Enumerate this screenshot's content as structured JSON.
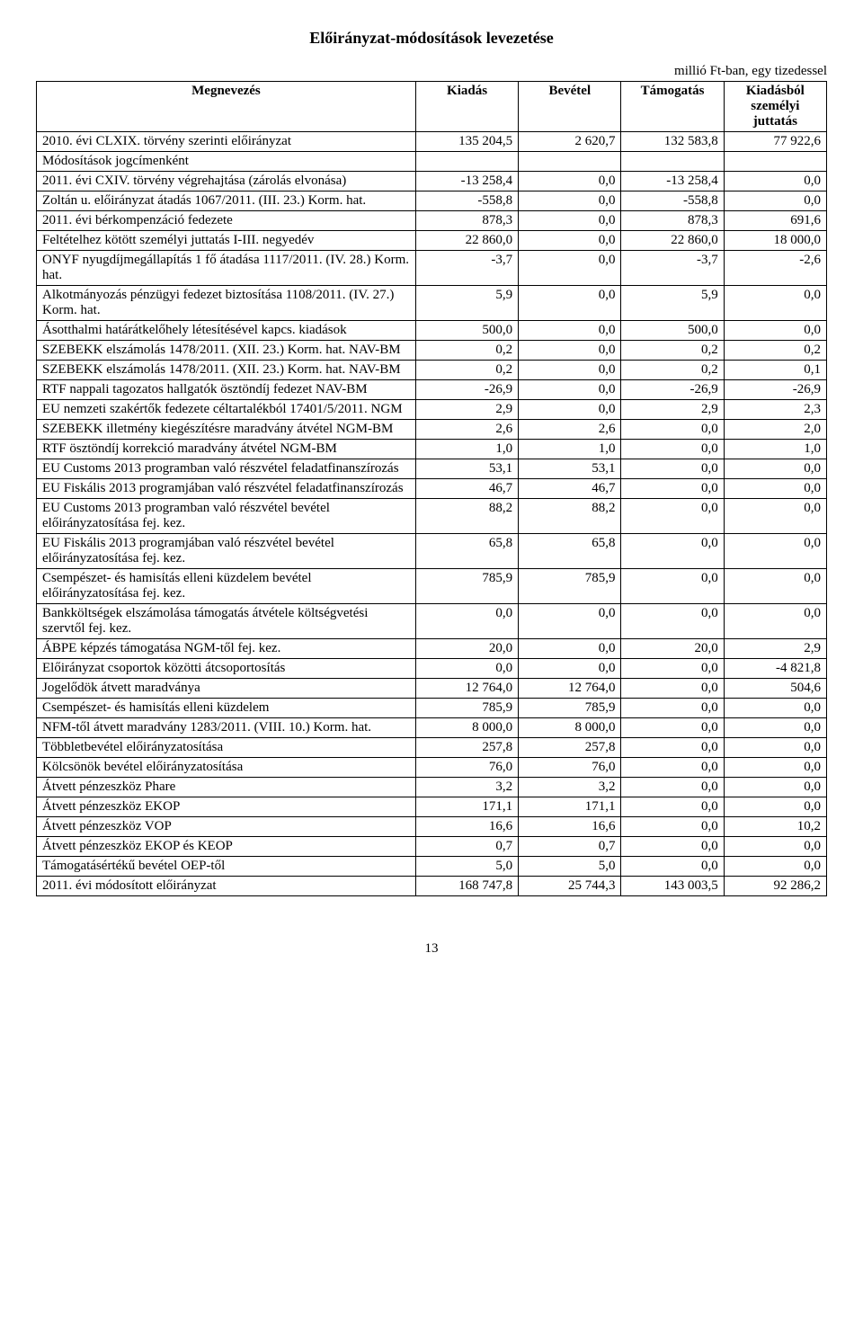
{
  "title": "Előirányzat-módosítások levezetése",
  "unit_note": "millió Ft-ban, egy tizedessel",
  "columns": {
    "name": "Megnevezés",
    "kiadas": "Kiadás",
    "bevetel": "Bevétel",
    "tamogatas": "Támogatás",
    "juttatas": "Kiadásból személyi juttatás"
  },
  "rows": [
    {
      "label": "2010. évi CLXIX. törvény szerinti előirányzat",
      "c": [
        "135 204,5",
        "2 620,7",
        "132 583,8",
        "77 922,6"
      ]
    },
    {
      "label": "Módosítások jogcímenként",
      "section": true
    },
    {
      "label": "2011. évi CXIV. törvény végrehajtása (zárolás elvonása)",
      "c": [
        "-13 258,4",
        "0,0",
        "-13 258,4",
        "0,0"
      ]
    },
    {
      "label": "Zoltán u. előirányzat átadás 1067/2011. (III. 23.) Korm. hat.",
      "c": [
        "-558,8",
        "0,0",
        "-558,8",
        "0,0"
      ]
    },
    {
      "label": "2011. évi bérkompenzáció fedezete",
      "c": [
        "878,3",
        "0,0",
        "878,3",
        "691,6"
      ]
    },
    {
      "label": "Feltételhez kötött személyi juttatás I-III. negyedév",
      "c": [
        "22 860,0",
        "0,0",
        "22 860,0",
        "18 000,0"
      ]
    },
    {
      "label": "ONYF nyugdíjmegállapítás 1 fő átadása 1117/2011. (IV. 28.) Korm. hat.",
      "c": [
        "-3,7",
        "0,0",
        "-3,7",
        "-2,6"
      ]
    },
    {
      "label": "Alkotmányozás pénzügyi fedezet biztosítása 1108/2011. (IV. 27.) Korm. hat.",
      "c": [
        "5,9",
        "0,0",
        "5,9",
        "0,0"
      ]
    },
    {
      "label": "Ásotthalmi határátkelőhely létesítésével kapcs. kiadások",
      "c": [
        "500,0",
        "0,0",
        "500,0",
        "0,0"
      ]
    },
    {
      "label": "SZEBEKK elszámolás  1478/2011. (XII. 23.) Korm. hat. NAV-BM",
      "c": [
        "0,2",
        "0,0",
        "0,2",
        "0,2"
      ]
    },
    {
      "label": "SZEBEKK elszámolás  1478/2011. (XII. 23.) Korm. hat. NAV-BM",
      "c": [
        "0,2",
        "0,0",
        "0,2",
        "0,1"
      ]
    },
    {
      "label": "RTF nappali tagozatos hallgatók ösztöndíj fedezet NAV-BM",
      "c": [
        "-26,9",
        "0,0",
        "-26,9",
        "-26,9"
      ]
    },
    {
      "label": "EU nemzeti szakértők fedezete céltartalékból  17401/5/2011. NGM",
      "c": [
        "2,9",
        "0,0",
        "2,9",
        "2,3"
      ]
    },
    {
      "label": "SZEBEKK illetmény kiegészítésre maradvány átvétel NGM-BM",
      "c": [
        "2,6",
        "2,6",
        "0,0",
        "2,0"
      ]
    },
    {
      "label": "RTF ösztöndíj korrekció maradvány átvétel NGM-BM",
      "c": [
        "1,0",
        "1,0",
        "0,0",
        "1,0"
      ]
    },
    {
      "label": "EU Customs 2013 programban való részvétel feladatfinanszírozás",
      "c": [
        "53,1",
        "53,1",
        "0,0",
        "0,0"
      ]
    },
    {
      "label": "EU Fiskális 2013 programjában való részvétel feladatfinanszírozás",
      "c": [
        "46,7",
        "46,7",
        "0,0",
        "0,0"
      ]
    },
    {
      "label": "EU Customs 2013 programban való részvétel bevétel előirányzatosítása fej. kez.",
      "c": [
        "88,2",
        "88,2",
        "0,0",
        "0,0"
      ]
    },
    {
      "label": "EU Fiskális 2013 programjában való részvétel bevétel előirányzatosítása fej. kez.",
      "c": [
        "65,8",
        "65,8",
        "0,0",
        "0,0"
      ]
    },
    {
      "label": "Csempészet- és hamisítás elleni küzdelem bevétel előirányzatosítása fej. kez.",
      "c": [
        "785,9",
        "785,9",
        "0,0",
        "0,0"
      ]
    },
    {
      "label": "Bankköltségek elszámolása támogatás átvétele költségvetési szervtől fej. kez.",
      "c": [
        "0,0",
        "0,0",
        "0,0",
        "0,0"
      ]
    },
    {
      "label": "ÁBPE képzés támogatása NGM-től fej. kez.",
      "c": [
        "20,0",
        "0,0",
        "20,0",
        "2,9"
      ]
    },
    {
      "label": "Előirányzat csoportok közötti átcsoportosítás",
      "c": [
        "0,0",
        "0,0",
        "0,0",
        "-4 821,8"
      ]
    },
    {
      "label": "Jogelődök átvett maradványa",
      "c": [
        "12 764,0",
        "12 764,0",
        "0,0",
        "504,6"
      ]
    },
    {
      "label": "Csempészet- és hamisítás elleni küzdelem",
      "c": [
        "785,9",
        "785,9",
        "0,0",
        "0,0"
      ]
    },
    {
      "label": "NFM-től átvett maradvány 1283/2011. (VIII. 10.) Korm. hat.",
      "c": [
        "8 000,0",
        "8 000,0",
        "0,0",
        "0,0"
      ]
    },
    {
      "label": "Többletbevétel előirányzatosítása",
      "c": [
        "257,8",
        "257,8",
        "0,0",
        "0,0"
      ]
    },
    {
      "label": "Kölcsönök bevétel előirányzatosítása",
      "c": [
        "76,0",
        "76,0",
        "0,0",
        "0,0"
      ]
    },
    {
      "label": "Átvett pénzeszköz Phare",
      "c": [
        "3,2",
        "3,2",
        "0,0",
        "0,0"
      ]
    },
    {
      "label": "Átvett pénzeszköz EKOP",
      "c": [
        "171,1",
        "171,1",
        "0,0",
        "0,0"
      ]
    },
    {
      "label": "Átvett pénzeszköz VOP",
      "c": [
        "16,6",
        "16,6",
        "0,0",
        "10,2"
      ]
    },
    {
      "label": "Átvett pénzeszköz EKOP és KEOP",
      "c": [
        "0,7",
        "0,7",
        "0,0",
        "0,0"
      ]
    },
    {
      "label": "Támogatásértékű bevétel OEP-től",
      "c": [
        "5,0",
        "5,0",
        "0,0",
        "0,0"
      ]
    },
    {
      "label": "2011. évi módosított előirányzat",
      "c": [
        "168 747,8",
        "25 744,3",
        "143 003,5",
        "92 286,2"
      ]
    }
  ],
  "page_number": "13"
}
